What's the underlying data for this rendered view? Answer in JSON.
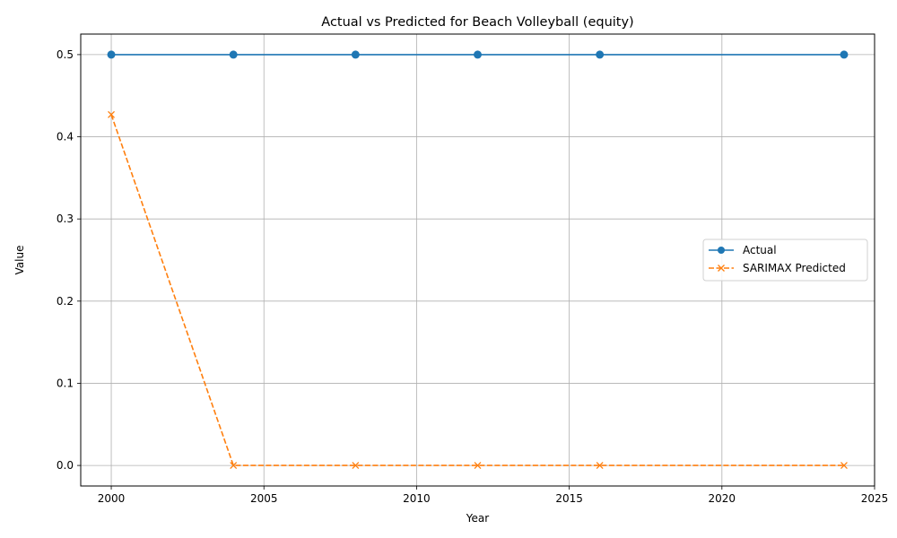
{
  "chart_data": {
    "type": "line",
    "title": "Actual vs Predicted for Beach Volleyball (equity)",
    "xlabel": "Year",
    "ylabel": "Value",
    "xlim": [
      1999,
      2025
    ],
    "ylim": [
      -0.025,
      0.525
    ],
    "xticks": [
      2000,
      2005,
      2010,
      2015,
      2020,
      2025
    ],
    "yticks": [
      0.0,
      0.1,
      0.2,
      0.3,
      0.4,
      0.5
    ],
    "grid": true,
    "legend_position": "center-right",
    "x": [
      2000,
      2004,
      2008,
      2012,
      2016,
      2024
    ],
    "series": [
      {
        "name": "Actual",
        "values": [
          0.5,
          0.5,
          0.5,
          0.5,
          0.5,
          0.5
        ],
        "color": "#1f77b4",
        "linestyle": "solid",
        "marker": "circle"
      },
      {
        "name": "SARIMAX Predicted",
        "values": [
          0.427,
          0.0,
          0.0,
          0.0,
          0.0,
          0.0
        ],
        "color": "#ff7f0e",
        "linestyle": "dashed",
        "marker": "x"
      }
    ]
  }
}
